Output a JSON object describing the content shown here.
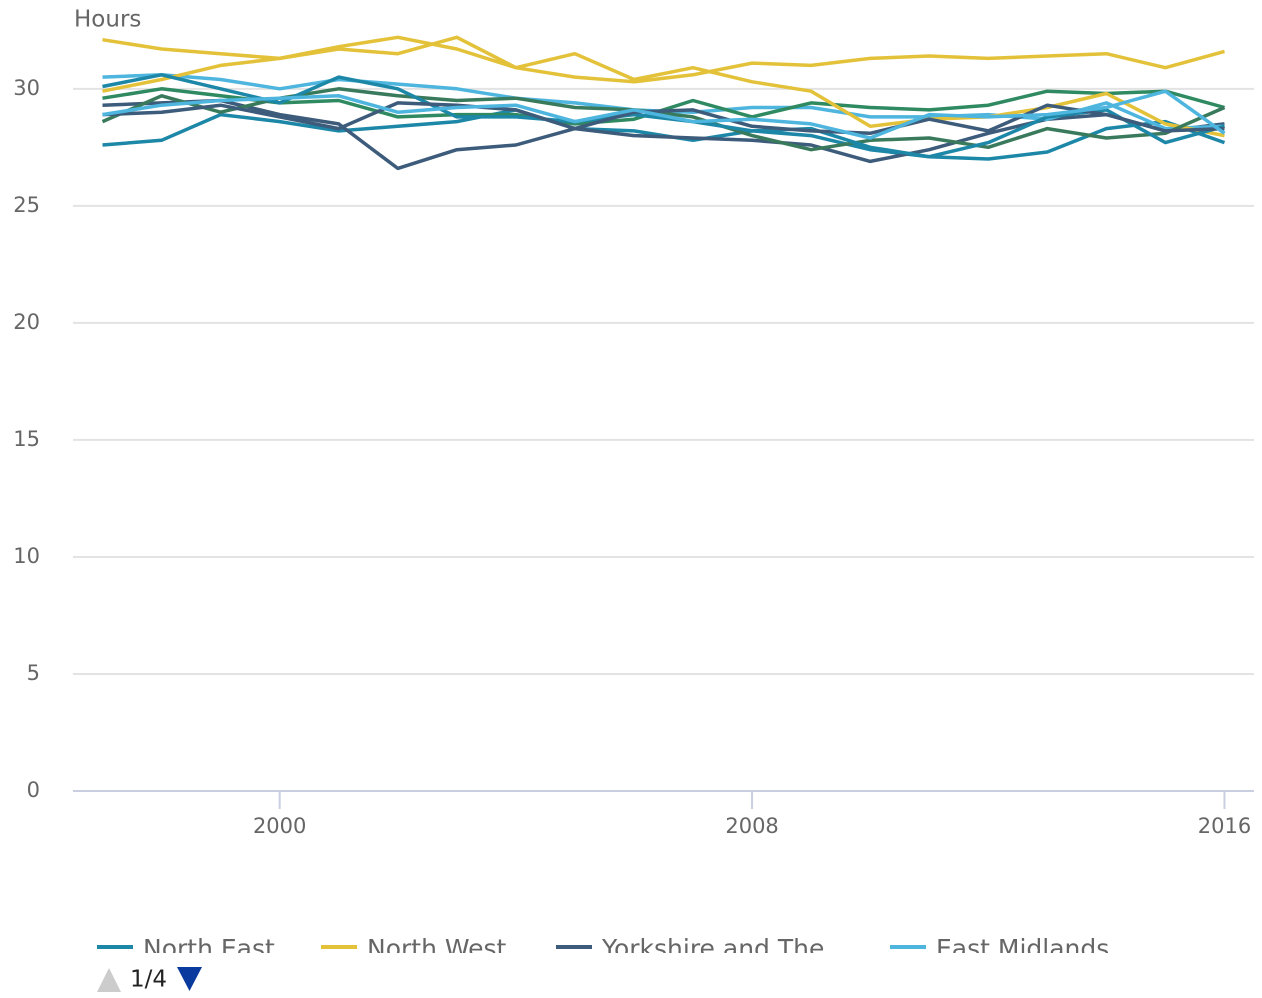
{
  "chart_data": {
    "type": "line",
    "y_label": "Hours",
    "x": [
      1997,
      1998,
      1999,
      2000,
      2001,
      2002,
      2003,
      2004,
      2005,
      2006,
      2007,
      2008,
      2009,
      2010,
      2011,
      2012,
      2013,
      2014,
      2015,
      2016
    ],
    "xlim": [
      1996.5,
      2016.5
    ],
    "xticks": [
      2000,
      2008,
      2016
    ],
    "ylim": [
      0,
      32
    ],
    "yticks": [
      0,
      5,
      10,
      15,
      20,
      25,
      30
    ],
    "grid": true,
    "series": [
      {
        "name": "North East",
        "color": "#1d87a8",
        "values": [
          27.6,
          27.8,
          28.9,
          28.6,
          28.2,
          28.4,
          28.6,
          29.1,
          28.3,
          28.2,
          27.8,
          28.2,
          28.0,
          27.4,
          27.1,
          27.0,
          27.3,
          28.3,
          28.6,
          27.7
        ]
      },
      {
        "name": "North West",
        "color": "#e3c23a",
        "values": [
          32.1,
          31.7,
          31.5,
          31.3,
          31.8,
          32.2,
          31.7,
          30.9,
          30.5,
          30.3,
          30.6,
          31.1,
          31.0,
          31.3,
          31.4,
          31.3,
          31.4,
          31.5,
          30.9,
          31.6
        ]
      },
      {
        "name": "Yorkshire and The",
        "color": "#3d5b7a",
        "values": [
          29.3,
          29.4,
          29.5,
          28.9,
          28.5,
          26.6,
          27.4,
          27.6,
          28.3,
          28.0,
          27.9,
          27.8,
          27.6,
          26.9,
          27.4,
          28.1,
          28.7,
          28.9,
          28.2,
          28.5
        ]
      },
      {
        "name": "East Midlands",
        "color": "#4eb5de",
        "values": [
          30.5,
          30.6,
          30.4,
          30.0,
          30.4,
          30.2,
          30.0,
          29.6,
          29.4,
          29.1,
          29.0,
          29.2,
          29.2,
          28.8,
          28.8,
          28.9,
          28.7,
          29.4,
          28.3,
          28.4
        ]
      },
      {
        "color": "#2f8a62",
        "values": [
          29.6,
          30.0,
          29.7,
          29.4,
          29.5,
          28.8,
          28.9,
          28.9,
          28.5,
          28.7,
          29.5,
          28.8,
          29.4,
          29.2,
          29.1,
          29.3,
          29.9,
          29.8,
          29.9,
          29.2
        ]
      },
      {
        "color": "#e3c23a",
        "values": [
          29.9,
          30.4,
          31.0,
          31.3,
          31.7,
          31.5,
          32.2,
          30.9,
          31.5,
          30.4,
          30.9,
          30.3,
          29.9,
          28.4,
          28.7,
          28.8,
          29.2,
          29.8,
          28.5,
          28.0
        ]
      },
      {
        "color": "#3a7a5c",
        "values": [
          28.6,
          29.7,
          29.0,
          29.6,
          30.0,
          29.7,
          29.5,
          29.6,
          29.2,
          29.1,
          28.8,
          28.0,
          27.4,
          27.8,
          27.9,
          27.5,
          28.3,
          27.9,
          28.1,
          29.2
        ]
      },
      {
        "color": "#1d87a8",
        "values": [
          30.1,
          30.6,
          30.0,
          29.4,
          30.5,
          30.0,
          28.8,
          28.8,
          28.6,
          28.9,
          28.6,
          28.2,
          28.3,
          27.5,
          27.1,
          27.7,
          28.8,
          29.1,
          27.7,
          28.4
        ]
      },
      {
        "color": "#3d5b7a",
        "values": [
          28.9,
          29.0,
          29.3,
          28.8,
          28.3,
          29.4,
          29.3,
          29.1,
          28.3,
          29.0,
          29.1,
          28.4,
          28.2,
          28.1,
          28.7,
          28.2,
          29.3,
          28.9,
          28.2,
          28.3
        ]
      },
      {
        "color": "#4eb5de",
        "values": [
          28.9,
          29.3,
          29.5,
          29.6,
          29.7,
          29.0,
          29.2,
          29.3,
          28.6,
          29.1,
          28.6,
          28.7,
          28.5,
          27.9,
          28.9,
          28.8,
          28.9,
          29.2,
          29.9,
          28.1
        ]
      }
    ],
    "legend_page": "1/4"
  }
}
